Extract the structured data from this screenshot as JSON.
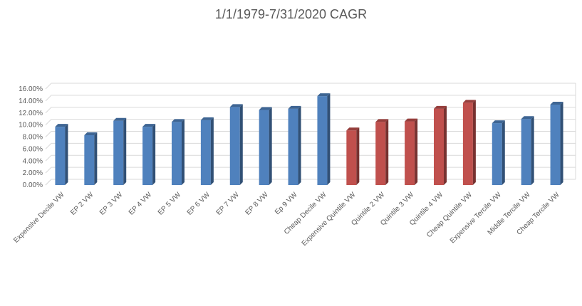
{
  "chart_data": {
    "type": "bar",
    "title": "1/1/1979-7/31/2020 CAGR",
    "xlabel": "",
    "ylabel": "",
    "ylim": [
      0,
      0.16
    ],
    "yticks": [
      "0.00%",
      "2.00%",
      "4.00%",
      "6.00%",
      "8.00%",
      "10.00%",
      "12.00%",
      "14.00%",
      "16.00%"
    ],
    "grid": true,
    "legend": "none",
    "categories": [
      "Expensive Decile VW",
      "EP 2 VW",
      "EP 3 VW",
      "EP 4 VW",
      "EP 5 VW",
      "EP 6 VW",
      "EP 7 VW",
      "EP 8 VW",
      "Ep 9 VW",
      "Cheap Decile VW",
      "Expensive Quintile VW",
      "Quintile 2 VW",
      "Quintile 3 VW",
      "Quintile 4 VW",
      "Cheap Quintile VW",
      "Expensive Tercile VW",
      "Middle Tercile VW",
      "Cheap Tercile VW"
    ],
    "values": [
      0.097,
      0.083,
      0.107,
      0.097,
      0.105,
      0.108,
      0.13,
      0.125,
      0.127,
      0.148,
      0.091,
      0.105,
      0.106,
      0.127,
      0.137,
      0.103,
      0.11,
      0.134
    ],
    "bar_colors": [
      "#4F81BD",
      "#4F81BD",
      "#4F81BD",
      "#4F81BD",
      "#4F81BD",
      "#4F81BD",
      "#4F81BD",
      "#4F81BD",
      "#4F81BD",
      "#4F81BD",
      "#C0504D",
      "#C0504D",
      "#C0504D",
      "#C0504D",
      "#C0504D",
      "#4F81BD",
      "#4F81BD",
      "#4F81BD"
    ],
    "colors": {
      "blue": "#4F81BD",
      "red": "#C0504D",
      "grid": "#D9D9D9",
      "text": "#595959"
    }
  }
}
